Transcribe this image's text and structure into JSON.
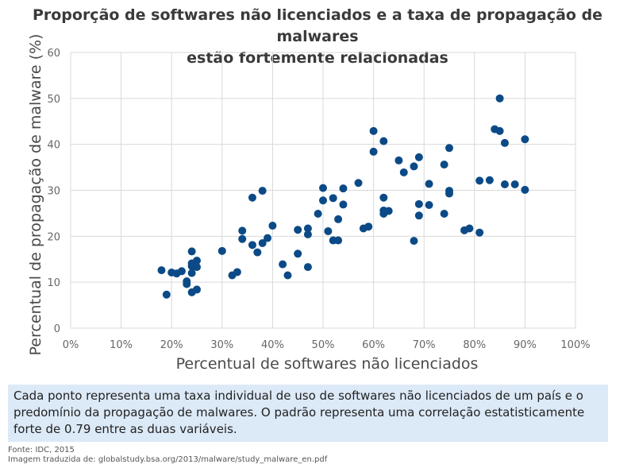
{
  "chart_data": {
    "type": "scatter",
    "title": [
      "Proporção de softwares não licenciados e a taxa de propagação de malwares",
      "estão fortemente relacionadas"
    ],
    "xlabel": "Percentual de softwares não licenciados",
    "ylabel": "Percentual de propagação de malware (%)",
    "xlim": [
      0,
      100
    ],
    "ylim": [
      0,
      60
    ],
    "x_ticks": [
      "0%",
      "10%",
      "20%",
      "30%",
      "40%",
      "50%",
      "60%",
      "70%",
      "80%",
      "90%",
      "100%"
    ],
    "y_ticks": [
      "0",
      "10",
      "20",
      "30",
      "40",
      "50",
      "60"
    ],
    "grid": true,
    "point_color": "#0b4a86",
    "points": [
      [
        18,
        12.6
      ],
      [
        19,
        7.3
      ],
      [
        20,
        12.1
      ],
      [
        21,
        11.9
      ],
      [
        22,
        12.4
      ],
      [
        23,
        9.6
      ],
      [
        23,
        10.2
      ],
      [
        24,
        7.8
      ],
      [
        24,
        12.0
      ],
      [
        24,
        13.5
      ],
      [
        24,
        14.1
      ],
      [
        24,
        16.7
      ],
      [
        25,
        8.4
      ],
      [
        25,
        13.3
      ],
      [
        25,
        14.7
      ],
      [
        30,
        16.8
      ],
      [
        32,
        11.5
      ],
      [
        33,
        12.2
      ],
      [
        34,
        19.4
      ],
      [
        34,
        21.2
      ],
      [
        36,
        18.1
      ],
      [
        36,
        28.4
      ],
      [
        37,
        16.5
      ],
      [
        38,
        18.5
      ],
      [
        38,
        29.9
      ],
      [
        39,
        19.6
      ],
      [
        40,
        22.3
      ],
      [
        42,
        13.9
      ],
      [
        43,
        11.5
      ],
      [
        45,
        16.2
      ],
      [
        45,
        21.4
      ],
      [
        47,
        13.3
      ],
      [
        47,
        20.4
      ],
      [
        47,
        21.7
      ],
      [
        49,
        24.9
      ],
      [
        50,
        27.8
      ],
      [
        50,
        30.5
      ],
      [
        51,
        21.1
      ],
      [
        52,
        19.1
      ],
      [
        52,
        28.3
      ],
      [
        53,
        19.1
      ],
      [
        53,
        23.7
      ],
      [
        54,
        26.9
      ],
      [
        54,
        30.4
      ],
      [
        57,
        31.6
      ],
      [
        58,
        21.7
      ],
      [
        59,
        22.1
      ],
      [
        60,
        38.4
      ],
      [
        60,
        42.9
      ],
      [
        62,
        24.9
      ],
      [
        62,
        25.6
      ],
      [
        62,
        28.4
      ],
      [
        62,
        40.7
      ],
      [
        63,
        25.5
      ],
      [
        65,
        36.5
      ],
      [
        66,
        33.9
      ],
      [
        68,
        19.0
      ],
      [
        68,
        35.2
      ],
      [
        69,
        24.5
      ],
      [
        69,
        27.0
      ],
      [
        69,
        37.2
      ],
      [
        71,
        26.8
      ],
      [
        71,
        31.4
      ],
      [
        74,
        24.9
      ],
      [
        74,
        35.6
      ],
      [
        75,
        29.3
      ],
      [
        75,
        29.9
      ],
      [
        75,
        39.2
      ],
      [
        78,
        21.3
      ],
      [
        79,
        21.7
      ],
      [
        81,
        20.8
      ],
      [
        81,
        32.1
      ],
      [
        83,
        32.2
      ],
      [
        84,
        43.3
      ],
      [
        85,
        42.9
      ],
      [
        85,
        50.0
      ],
      [
        86,
        31.3
      ],
      [
        86,
        40.3
      ],
      [
        88,
        31.3
      ],
      [
        90,
        30.1
      ],
      [
        90,
        41.1
      ]
    ]
  },
  "caption": [
    "Cada ponto representa uma taxa individual de uso de softwares não licenciados de um país e o",
    "predomínio da propagação de malwares. O padrão representa uma correlação estatisticamente",
    "forte de 0.79 entre as duas variáveis."
  ],
  "footer": {
    "source": "Fonte: IDC, 2015",
    "translated": "Imagem traduzida de: globalstudy.bsa.org/2013/malware/study_malware_en.pdf"
  }
}
